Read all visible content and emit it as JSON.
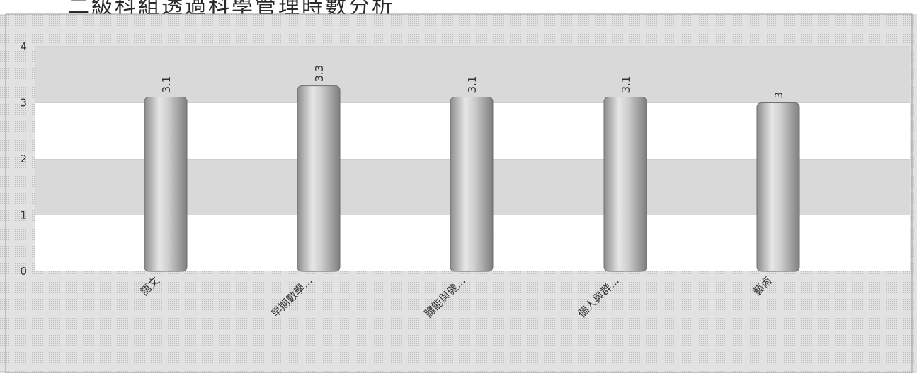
{
  "page": {
    "title": "二級科組透過科學管理時數分析"
  },
  "chart_data": {
    "type": "bar",
    "title": "",
    "xlabel": "",
    "ylabel": "",
    "categories": [
      "語文",
      "早期數學...",
      "體能與健...",
      "個人與群...",
      "藝術"
    ],
    "values": [
      3.1,
      3.3,
      3.1,
      3.1,
      3
    ],
    "value_labels": [
      "3.1",
      "3.3",
      "3.1",
      "3.1",
      "3"
    ],
    "ylim": [
      0,
      4
    ],
    "yticks": [
      "0",
      "1",
      "2",
      "3",
      "4"
    ],
    "grid": true,
    "legend": "none",
    "colors": {
      "bar": "#b8b8b8",
      "band": "#d9d9d9",
      "plot_background": "#ffffff",
      "frame_background": "#d6d6d6"
    }
  }
}
